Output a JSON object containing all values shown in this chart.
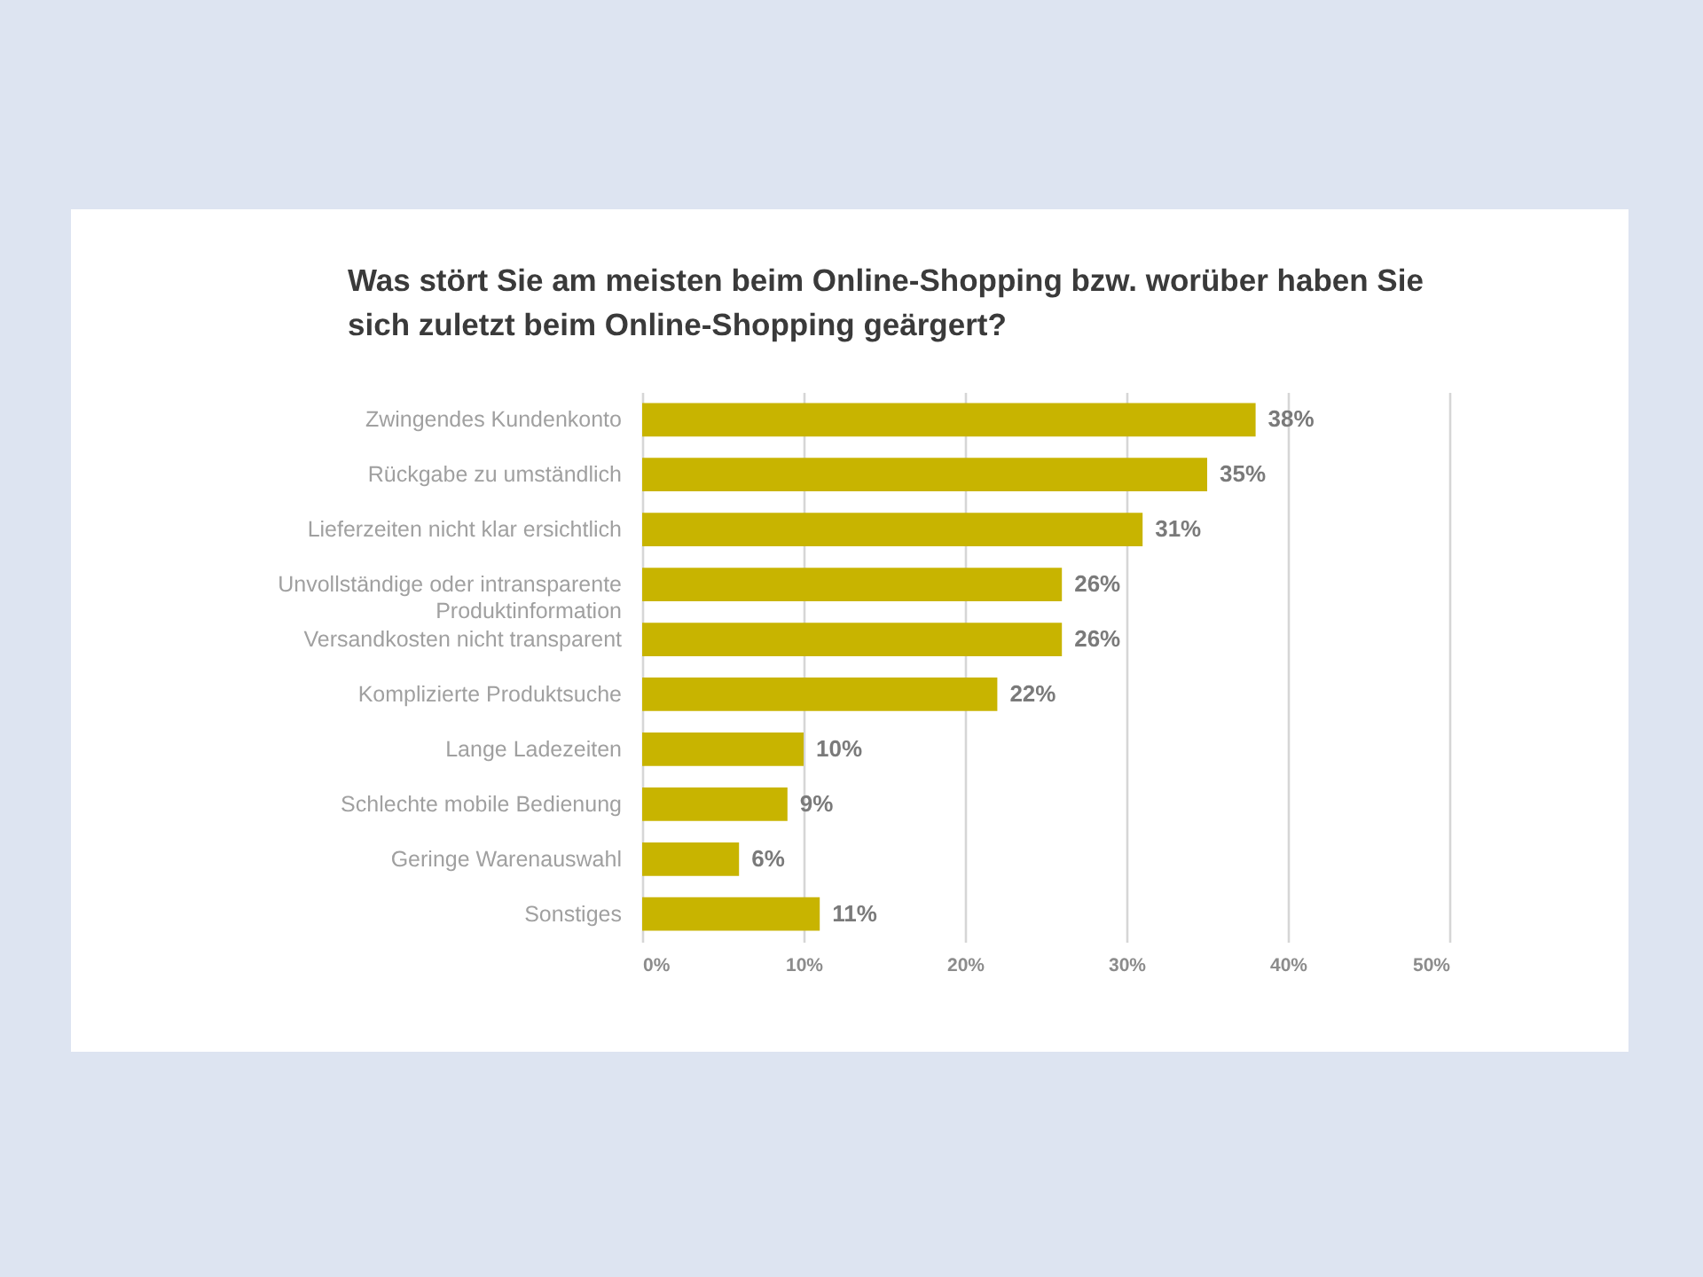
{
  "chart_data": {
    "type": "bar",
    "orientation": "horizontal",
    "title": "Was stört Sie am meisten beim Online-Shopping bzw. worüber haben Sie\nsich zuletzt beim Online-Shopping geärgert?",
    "categories": [
      "Zwingendes Kundenkonto",
      "Rückgabe zu umständlich",
      "Lieferzeiten nicht klar ersichtlich",
      "Unvollständige oder intransparente\nProduktinformation",
      "Versandkosten nicht transparent",
      "Komplizierte Produktsuche",
      "Lange Ladezeiten",
      "Schlechte mobile Bedienung",
      "Geringe Warenauswahl",
      "Sonstiges"
    ],
    "values": [
      38,
      35,
      31,
      26,
      26,
      22,
      10,
      9,
      6,
      11
    ],
    "value_labels": [
      "38%",
      "35%",
      "31%",
      "26%",
      "26%",
      "22%",
      "10%",
      "9%",
      "6%",
      "11%"
    ],
    "color": "#c8b400",
    "xlim": [
      0,
      50
    ],
    "xticks": [
      {
        "value": 0,
        "label": "0%"
      },
      {
        "value": 10,
        "label": "10%"
      },
      {
        "value": 20,
        "label": "20%"
      },
      {
        "value": 30,
        "label": "30%"
      },
      {
        "value": 40,
        "label": "40%"
      },
      {
        "value": 50,
        "label": "50%"
      }
    ],
    "grid": "x"
  }
}
